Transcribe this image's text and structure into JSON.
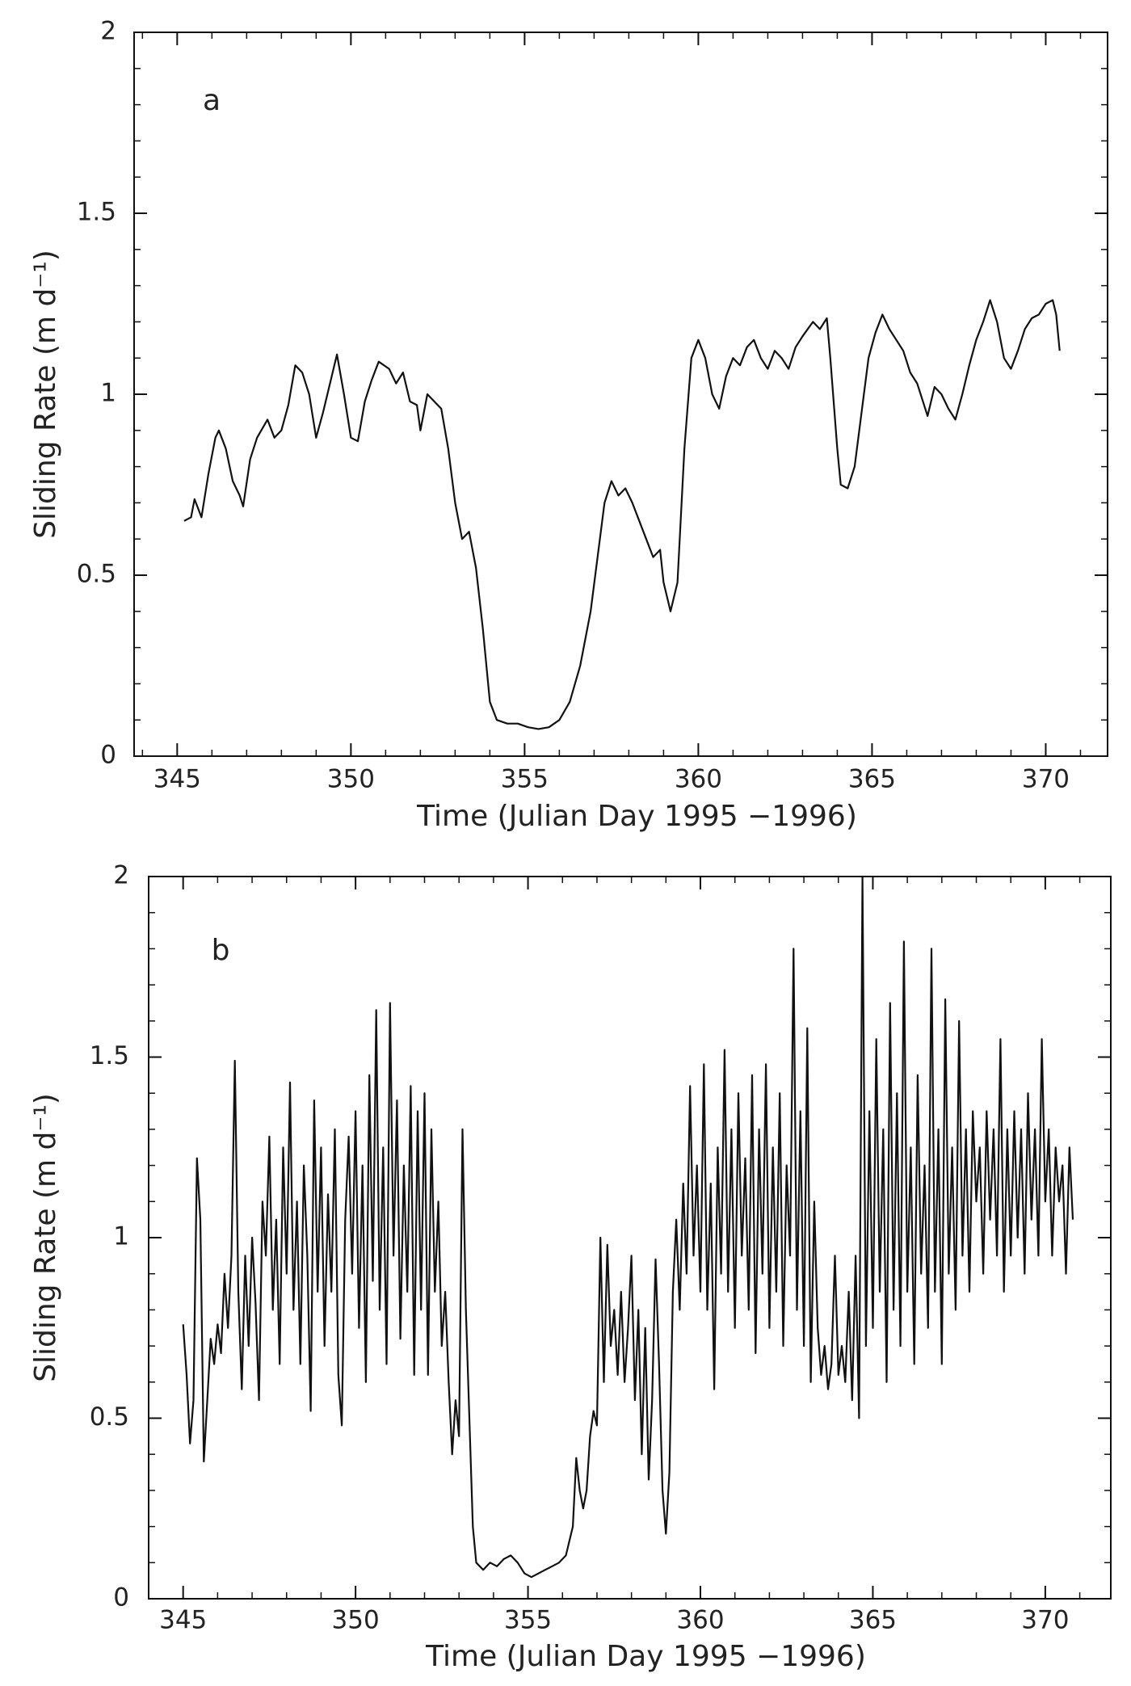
{
  "chart_data": [
    {
      "type": "line",
      "panel_label": "a",
      "x_label": "Time (Julian Day 1995 −1996)",
      "y_label": "Sliding Rate (m d⁻¹)",
      "xlim": [
        343.76,
        371.78
      ],
      "ylim": [
        0,
        2
      ],
      "xticks": [
        345,
        350,
        355,
        360,
        365,
        370
      ],
      "yticks": [
        0,
        0.5,
        1,
        1.5,
        2
      ],
      "x": [
        345.2,
        345.4,
        345.5,
        345.7,
        345.9,
        346.1,
        346.2,
        346.4,
        346.6,
        346.8,
        346.9,
        347.1,
        347.3,
        347.6,
        347.8,
        348.0,
        348.2,
        348.4,
        348.6,
        348.8,
        349.0,
        349.2,
        349.4,
        349.6,
        349.8,
        350.0,
        350.2,
        350.4,
        350.6,
        350.8,
        351.1,
        351.3,
        351.5,
        351.7,
        351.9,
        352.0,
        352.2,
        352.4,
        352.6,
        352.8,
        353.0,
        353.2,
        353.4,
        353.6,
        353.8,
        354.0,
        354.2,
        354.5,
        354.8,
        355.1,
        355.4,
        355.7,
        356.0,
        356.3,
        356.6,
        356.9,
        357.1,
        357.3,
        357.5,
        357.7,
        357.9,
        358.1,
        358.3,
        358.5,
        358.7,
        358.9,
        359.0,
        359.2,
        359.4,
        359.6,
        359.8,
        360.0,
        360.2,
        360.4,
        360.6,
        360.8,
        361.0,
        361.2,
        361.4,
        361.6,
        361.8,
        362.0,
        362.2,
        362.4,
        362.6,
        362.8,
        363.0,
        363.3,
        363.5,
        363.7,
        363.8,
        364.0,
        364.1,
        364.3,
        364.5,
        364.7,
        364.9,
        365.1,
        365.3,
        365.5,
        365.7,
        365.9,
        366.1,
        366.3,
        366.5,
        366.6,
        366.8,
        367.0,
        367.2,
        367.4,
        367.6,
        367.8,
        368.0,
        368.2,
        368.4,
        368.6,
        368.8,
        369.0,
        369.2,
        369.4,
        369.6,
        369.8,
        370.0,
        370.2,
        370.3,
        370.4
      ],
      "series": [
        {
          "color": "#111111",
          "values": [
            0.65,
            0.66,
            0.71,
            0.66,
            0.78,
            0.88,
            0.9,
            0.85,
            0.76,
            0.72,
            0.69,
            0.82,
            0.88,
            0.93,
            0.88,
            0.9,
            0.97,
            1.08,
            1.06,
            1.0,
            0.88,
            0.95,
            1.03,
            1.11,
            1.0,
            0.88,
            0.87,
            0.98,
            1.04,
            1.09,
            1.07,
            1.03,
            1.06,
            0.98,
            0.97,
            0.9,
            1.0,
            0.98,
            0.96,
            0.85,
            0.7,
            0.6,
            0.62,
            0.52,
            0.35,
            0.15,
            0.1,
            0.09,
            0.09,
            0.08,
            0.075,
            0.08,
            0.1,
            0.15,
            0.25,
            0.4,
            0.55,
            0.7,
            0.76,
            0.72,
            0.74,
            0.7,
            0.65,
            0.6,
            0.55,
            0.57,
            0.48,
            0.4,
            0.48,
            0.85,
            1.1,
            1.15,
            1.1,
            1.0,
            0.96,
            1.05,
            1.1,
            1.08,
            1.13,
            1.15,
            1.1,
            1.07,
            1.12,
            1.1,
            1.07,
            1.13,
            1.16,
            1.2,
            1.18,
            1.21,
            1.1,
            0.85,
            0.75,
            0.74,
            0.8,
            0.95,
            1.1,
            1.17,
            1.22,
            1.18,
            1.15,
            1.12,
            1.06,
            1.03,
            0.97,
            0.94,
            1.02,
            1.0,
            0.96,
            0.93,
            1.0,
            1.08,
            1.15,
            1.2,
            1.26,
            1.2,
            1.1,
            1.07,
            1.12,
            1.18,
            1.21,
            1.22,
            1.25,
            1.26,
            1.22,
            1.12
          ]
        }
      ]
    },
    {
      "type": "line",
      "panel_label": "b",
      "x_label": "Time (Julian Day 1995 −1996)",
      "y_label": "Sliding Rate (m d⁻¹)",
      "xlim": [
        344.0,
        371.9
      ],
      "ylim": [
        0,
        2
      ],
      "xticks": [
        345,
        350,
        355,
        360,
        365,
        370
      ],
      "yticks": [
        0,
        0.5,
        1,
        1.5,
        2
      ],
      "x": [
        345.0,
        345.1,
        345.2,
        345.3,
        345.4,
        345.5,
        345.6,
        345.7,
        345.8,
        345.9,
        346.0,
        346.1,
        346.2,
        346.3,
        346.4,
        346.5,
        346.6,
        346.7,
        346.8,
        346.9,
        347.0,
        347.1,
        347.2,
        347.3,
        347.4,
        347.5,
        347.6,
        347.7,
        347.8,
        347.9,
        348.0,
        348.1,
        348.2,
        348.3,
        348.4,
        348.5,
        348.6,
        348.7,
        348.8,
        348.9,
        349.0,
        349.1,
        349.2,
        349.3,
        349.4,
        349.5,
        349.6,
        349.7,
        349.8,
        349.9,
        350.0,
        350.1,
        350.2,
        350.3,
        350.4,
        350.5,
        350.6,
        350.7,
        350.8,
        350.9,
        351.0,
        351.1,
        351.2,
        351.3,
        351.4,
        351.5,
        351.6,
        351.7,
        351.8,
        351.9,
        352.0,
        352.1,
        352.2,
        352.3,
        352.4,
        352.5,
        352.6,
        352.7,
        352.8,
        352.9,
        353.0,
        353.1,
        353.2,
        353.3,
        353.4,
        353.5,
        353.7,
        353.9,
        354.1,
        354.3,
        354.5,
        354.7,
        354.9,
        355.1,
        355.3,
        355.5,
        355.7,
        355.9,
        356.1,
        356.3,
        356.4,
        356.5,
        356.6,
        356.7,
        356.8,
        356.9,
        357.0,
        357.1,
        357.2,
        357.3,
        357.4,
        357.5,
        357.6,
        357.7,
        357.8,
        357.9,
        358.0,
        358.1,
        358.2,
        358.3,
        358.4,
        358.5,
        358.6,
        358.7,
        358.8,
        358.9,
        359.0,
        359.1,
        359.2,
        359.3,
        359.4,
        359.5,
        359.6,
        359.7,
        359.8,
        359.9,
        360.0,
        360.1,
        360.2,
        360.3,
        360.4,
        360.5,
        360.6,
        360.7,
        360.8,
        360.9,
        361.0,
        361.1,
        361.2,
        361.3,
        361.4,
        361.5,
        361.6,
        361.7,
        361.8,
        361.9,
        362.0,
        362.1,
        362.2,
        362.3,
        362.4,
        362.5,
        362.6,
        362.7,
        362.8,
        362.9,
        363.0,
        363.1,
        363.2,
        363.3,
        363.4,
        363.5,
        363.6,
        363.7,
        363.8,
        363.9,
        364.0,
        364.1,
        364.2,
        364.3,
        364.4,
        364.5,
        364.6,
        364.7,
        364.8,
        364.9,
        365.0,
        365.1,
        365.2,
        365.3,
        365.4,
        365.5,
        365.6,
        365.7,
        365.8,
        365.9,
        366.0,
        366.1,
        366.2,
        366.3,
        366.4,
        366.5,
        366.6,
        366.7,
        366.8,
        366.9,
        367.0,
        367.1,
        367.2,
        367.3,
        367.4,
        367.5,
        367.6,
        367.7,
        367.8,
        367.9,
        368.0,
        368.1,
        368.2,
        368.3,
        368.4,
        368.5,
        368.6,
        368.7,
        368.8,
        368.9,
        369.0,
        369.1,
        369.2,
        369.3,
        369.4,
        369.5,
        369.6,
        369.7,
        369.8,
        369.9,
        370.0,
        370.1,
        370.2,
        370.3,
        370.4,
        370.5,
        370.6,
        370.7,
        370.8
      ],
      "series": [
        {
          "color": "#111111",
          "values": [
            0.76,
            0.62,
            0.43,
            0.55,
            1.22,
            1.05,
            0.38,
            0.55,
            0.72,
            0.65,
            0.76,
            0.68,
            0.9,
            0.75,
            0.95,
            1.49,
            0.85,
            0.58,
            0.95,
            0.7,
            1.0,
            0.82,
            0.55,
            1.1,
            0.95,
            1.28,
            0.8,
            1.05,
            0.65,
            1.25,
            0.9,
            1.43,
            0.8,
            1.1,
            0.65,
            1.2,
            0.95,
            0.52,
            1.38,
            0.85,
            1.25,
            0.7,
            1.12,
            0.85,
            1.3,
            0.62,
            0.48,
            1.05,
            1.28,
            0.9,
            1.35,
            0.75,
            1.2,
            0.6,
            1.45,
            0.88,
            1.63,
            0.8,
            1.25,
            0.65,
            1.65,
            0.95,
            1.38,
            0.72,
            1.2,
            0.85,
            1.42,
            0.62,
            1.35,
            0.8,
            1.4,
            0.62,
            1.3,
            0.85,
            1.1,
            0.7,
            0.85,
            0.6,
            0.4,
            0.55,
            0.45,
            1.3,
            0.8,
            0.5,
            0.2,
            0.1,
            0.08,
            0.1,
            0.09,
            0.11,
            0.12,
            0.1,
            0.07,
            0.06,
            0.07,
            0.08,
            0.09,
            0.1,
            0.12,
            0.2,
            0.39,
            0.3,
            0.25,
            0.3,
            0.45,
            0.52,
            0.48,
            1.0,
            0.6,
            0.98,
            0.7,
            0.8,
            0.62,
            0.85,
            0.6,
            0.75,
            0.95,
            0.55,
            0.8,
            0.4,
            0.75,
            0.33,
            0.55,
            0.94,
            0.65,
            0.3,
            0.18,
            0.35,
            0.85,
            1.05,
            0.8,
            1.15,
            0.9,
            1.42,
            0.95,
            1.2,
            0.85,
            1.48,
            0.8,
            1.15,
            0.58,
            1.25,
            0.9,
            1.52,
            0.85,
            1.3,
            0.75,
            1.4,
            0.95,
            1.22,
            0.8,
            1.45,
            0.68,
            1.3,
            0.9,
            1.48,
            0.75,
            1.25,
            0.85,
            1.4,
            0.7,
            1.2,
            0.95,
            1.8,
            0.8,
            1.35,
            0.7,
            1.58,
            0.6,
            1.1,
            0.75,
            0.62,
            0.7,
            0.58,
            0.65,
            0.95,
            0.62,
            0.7,
            0.6,
            0.85,
            0.55,
            0.95,
            0.5,
            2.0,
            0.7,
            1.35,
            0.75,
            1.55,
            0.85,
            1.3,
            0.6,
            1.65,
            0.8,
            1.4,
            0.7,
            1.82,
            0.85,
            1.25,
            0.65,
            1.45,
            0.9,
            1.2,
            0.75,
            1.8,
            0.85,
            1.3,
            0.65,
            1.66,
            0.9,
            1.25,
            0.8,
            1.6,
            0.95,
            1.3,
            0.85,
            1.35,
            1.1,
            1.25,
            0.9,
            1.35,
            1.05,
            1.3,
            0.95,
            1.55,
            0.85,
            1.3,
            0.95,
            1.35,
            1.0,
            1.3,
            0.9,
            1.4,
            1.05,
            1.3,
            0.95,
            1.55,
            1.1,
            1.3,
            0.95,
            1.25,
            1.1,
            1.2,
            0.9,
            1.25,
            1.05
          ]
        }
      ]
    }
  ]
}
